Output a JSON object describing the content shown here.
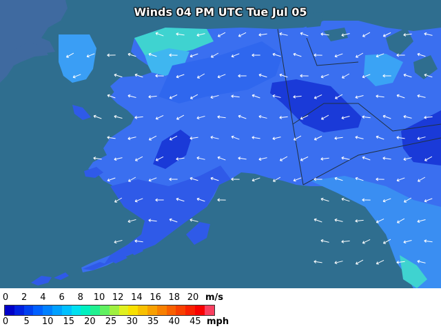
{
  "map": {
    "title": "Winds 04 PM UTC Tue Jul 05",
    "colors": {
      "ocean": "#2f6e8f",
      "land_dark": "#1f3fd0",
      "land_mid": "#2f5ee8",
      "land_light": "#3a7bf0",
      "land_cyan": "#45a8f5",
      "land_green": "#4ae0c0",
      "outside_land": "#3f6aa0",
      "border": "#203040",
      "arrow": "#ffffff"
    }
  },
  "legend": {
    "ms_ticks": [
      "0",
      "2",
      "4",
      "6",
      "8",
      "10",
      "12",
      "14",
      "16",
      "18",
      "20"
    ],
    "ms_unit": "m/s",
    "mph_ticks": [
      "0",
      "5",
      "10",
      "15",
      "20",
      "25",
      "30",
      "35",
      "40",
      "45"
    ],
    "mph_unit": "mph",
    "colorbar": [
      "#0000c8",
      "#0020e0",
      "#0040f0",
      "#0060ff",
      "#0080ff",
      "#00a0ff",
      "#00c0ff",
      "#00e0f0",
      "#00f0c0",
      "#20f090",
      "#60f060",
      "#a0f040",
      "#e0f020",
      "#f8e000",
      "#f8c000",
      "#f8a000",
      "#f88000",
      "#f86000",
      "#f84000",
      "#f82000",
      "#f80000",
      "#f84060"
    ]
  }
}
